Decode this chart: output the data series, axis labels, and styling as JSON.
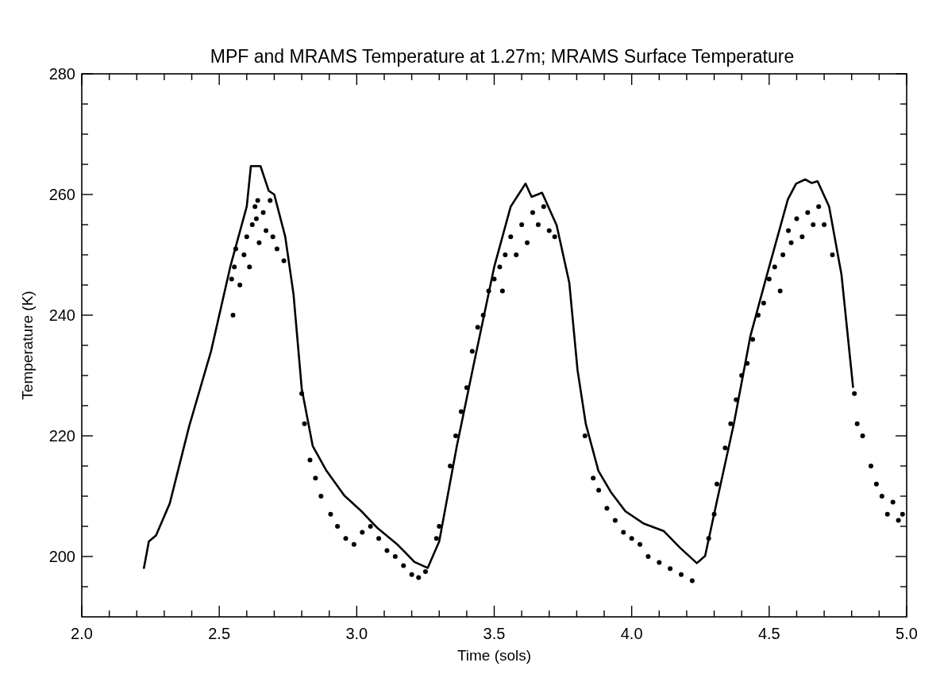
{
  "chart_data": {
    "type": "line",
    "title": "MPF and MRAMS Temperature at 1.27m; MRAMS Surface Temperature",
    "xlabel": "Time (sols)",
    "ylabel": "Temperature (K)",
    "xlim": [
      2.0,
      5.0
    ],
    "ylim": [
      190,
      280
    ],
    "xticks": [
      {
        "value": 2.0,
        "label": "2.0"
      },
      {
        "value": 2.1,
        "label": null
      },
      {
        "value": 2.2,
        "label": null
      },
      {
        "value": 2.3,
        "label": null
      },
      {
        "value": 2.4,
        "label": null
      },
      {
        "value": 2.5,
        "label": "2.5"
      },
      {
        "value": 2.6,
        "label": null
      },
      {
        "value": 2.7,
        "label": null
      },
      {
        "value": 2.8,
        "label": null
      },
      {
        "value": 2.9,
        "label": null
      },
      {
        "value": 3.0,
        "label": "3.0"
      },
      {
        "value": 3.1,
        "label": null
      },
      {
        "value": 3.2,
        "label": null
      },
      {
        "value": 3.3,
        "label": null
      },
      {
        "value": 3.4,
        "label": null
      },
      {
        "value": 3.5,
        "label": "3.5"
      },
      {
        "value": 3.6,
        "label": null
      },
      {
        "value": 3.7,
        "label": null
      },
      {
        "value": 3.8,
        "label": null
      },
      {
        "value": 3.9,
        "label": null
      },
      {
        "value": 4.0,
        "label": "4.0"
      },
      {
        "value": 4.1,
        "label": null
      },
      {
        "value": 4.2,
        "label": null
      },
      {
        "value": 4.3,
        "label": null
      },
      {
        "value": 4.4,
        "label": null
      },
      {
        "value": 4.5,
        "label": "4.5"
      },
      {
        "value": 4.6,
        "label": null
      },
      {
        "value": 4.7,
        "label": null
      },
      {
        "value": 4.8,
        "label": null
      },
      {
        "value": 4.9,
        "label": null
      },
      {
        "value": 5.0,
        "label": "5.0"
      }
    ],
    "yticks": [
      {
        "value": 195,
        "label": null
      },
      200,
      {
        "value": 205,
        "label": null
      },
      {
        "value": 210,
        "label": null
      },
      {
        "value": 215,
        "label": null
      },
      220,
      {
        "value": 225,
        "label": null
      },
      {
        "value": 230,
        "label": null
      },
      {
        "value": 235,
        "label": null
      },
      240,
      {
        "value": 245,
        "label": null
      },
      {
        "value": 250,
        "label": null
      },
      {
        "value": 255,
        "label": null
      },
      260,
      {
        "value": 265,
        "label": null
      },
      {
        "value": 270,
        "label": null
      },
      {
        "value": 275,
        "label": null
      },
      280
    ],
    "grid": false,
    "series": [
      {
        "color": "#000000",
        "marker": "none",
        "line_style": "solid",
        "x": [
          2.226,
          2.244,
          2.27,
          2.32,
          2.39,
          2.47,
          2.54,
          2.6,
          2.615,
          2.65,
          2.68,
          2.7,
          2.74,
          2.77,
          2.8,
          2.84,
          2.89,
          2.955,
          3.015,
          3.076,
          3.15,
          3.21,
          3.258,
          3.3,
          3.364,
          3.424,
          3.5,
          3.56,
          3.614,
          3.636,
          3.674,
          3.727,
          3.773,
          3.803,
          3.833,
          3.879,
          3.924,
          3.977,
          4.042,
          4.117,
          4.177,
          4.237,
          4.267,
          4.312,
          4.372,
          4.432,
          4.492,
          4.568,
          4.598,
          4.631,
          4.655,
          4.676,
          4.718,
          4.763,
          4.805
        ],
        "values": [
          198.1,
          202.5,
          203.5,
          208.8,
          221.5,
          234,
          248,
          258,
          264.7,
          264.7,
          260.6,
          260,
          253,
          243.5,
          227.8,
          218.3,
          214.2,
          210.1,
          207.6,
          204.7,
          201.9,
          199.1,
          198.1,
          202.5,
          218.3,
          231.5,
          248,
          258,
          261.8,
          259.6,
          260.3,
          254.9,
          245.4,
          230.9,
          222,
          214.2,
          210.7,
          207.5,
          205.5,
          204.2,
          201.4,
          198.9,
          200.1,
          209.6,
          222.1,
          236.6,
          246.7,
          259.2,
          261.8,
          262.5,
          261.9,
          262.2,
          258,
          246.7,
          228.1
        ]
      },
      {
        "type": "scatter",
        "color": "#000000",
        "marker": "circle",
        "x": [
          2.545,
          2.55,
          2.555,
          2.56,
          2.575,
          2.59,
          2.6,
          2.61,
          2.62,
          2.63,
          2.635,
          2.64,
          2.645,
          2.66,
          2.67,
          2.685,
          2.695,
          2.71,
          2.735,
          2.8,
          2.81,
          2.83,
          2.85,
          2.87,
          2.905,
          2.93,
          2.96,
          2.99,
          3.02,
          3.05,
          3.08,
          3.11,
          3.14,
          3.17,
          3.2,
          3.225,
          3.25,
          3.29,
          3.3,
          3.34,
          3.36,
          3.38,
          3.4,
          3.42,
          3.44,
          3.46,
          3.48,
          3.5,
          3.52,
          3.53,
          3.54,
          3.56,
          3.58,
          3.6,
          3.62,
          3.64,
          3.66,
          3.68,
          3.7,
          3.72,
          3.83,
          3.86,
          3.88,
          3.91,
          3.94,
          3.97,
          4.0,
          4.03,
          4.06,
          4.1,
          4.14,
          4.18,
          4.22,
          4.28,
          4.3,
          4.31,
          4.34,
          4.36,
          4.38,
          4.4,
          4.42,
          4.44,
          4.46,
          4.48,
          4.5,
          4.52,
          4.54,
          4.55,
          4.57,
          4.58,
          4.6,
          4.62,
          4.64,
          4.66,
          4.68,
          4.7,
          4.73,
          4.81,
          4.82,
          4.84,
          4.87,
          4.89,
          4.91,
          4.93,
          4.95,
          4.97,
          4.985
        ],
        "values": [
          246,
          240,
          248,
          251,
          245,
          250,
          253,
          248,
          255,
          258,
          256,
          259,
          252,
          257,
          254,
          259,
          253,
          251,
          249,
          227,
          222,
          216,
          213,
          210,
          207,
          205,
          203,
          202,
          204,
          205,
          203,
          201,
          200,
          198.5,
          197,
          196.5,
          197.5,
          203,
          205,
          215,
          220,
          224,
          228,
          234,
          238,
          240,
          244,
          246,
          248,
          244,
          250,
          253,
          250,
          255,
          252,
          257,
          255,
          258,
          254,
          253,
          220,
          213,
          211,
          208,
          206,
          204,
          203,
          202,
          200,
          199,
          198,
          197,
          196,
          203,
          207,
          212,
          218,
          222,
          226,
          230,
          232,
          236,
          240,
          242,
          246,
          248,
          244,
          250,
          254,
          252,
          256,
          253,
          257,
          255,
          258,
          255,
          250,
          227,
          222,
          220,
          215,
          212,
          210,
          207,
          209,
          206,
          207
        ]
      }
    ]
  }
}
